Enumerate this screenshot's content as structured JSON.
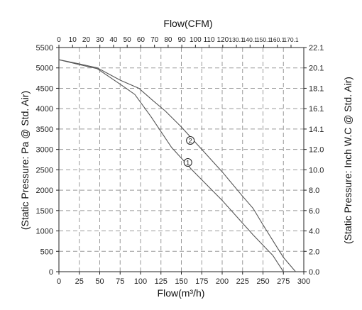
{
  "chart_data": {
    "type": "line",
    "title": "",
    "top_axis": {
      "label": "Flow(CFM)",
      "tick_labels": [
        "0",
        "10",
        "20",
        "30",
        "40",
        "50",
        "60",
        "70",
        "80",
        "90",
        "100",
        "110",
        "120",
        "130.1",
        "140.1",
        "150.1",
        "160.1",
        "170.1"
      ]
    },
    "bottom_axis": {
      "label": "Flow(m³/h)",
      "ticks": [
        0,
        25,
        50,
        75,
        100,
        125,
        150,
        175,
        200,
        225,
        250,
        275,
        300
      ],
      "xlim": [
        0,
        300
      ]
    },
    "left_axis": {
      "label": "(Static Pressure: Pa @ Std. Air)",
      "ticks": [
        0,
        500,
        1000,
        1500,
        2000,
        2500,
        3000,
        3500,
        4000,
        4500,
        5000,
        5500
      ],
      "ylim": [
        0,
        5500
      ]
    },
    "right_axis": {
      "label": "(Static Pressure: Inch W.C @ Std. Air)",
      "tick_labels": [
        "0.0",
        "2.0",
        "4.0",
        "6.0",
        "8.0",
        "10.0",
        "12.0",
        "14.1",
        "16.1",
        "18.1",
        "20.1",
        "22.1"
      ]
    },
    "grid": true,
    "series": [
      {
        "name": "1",
        "values": [
          [
            0,
            5200
          ],
          [
            25,
            5080
          ],
          [
            47,
            4980
          ],
          [
            75,
            4600
          ],
          [
            93,
            4350
          ],
          [
            113,
            3800
          ],
          [
            138,
            3050
          ],
          [
            163,
            2500
          ],
          [
            200,
            1750
          ],
          [
            238,
            900
          ],
          [
            262,
            400
          ],
          [
            275,
            0
          ]
        ]
      },
      {
        "name": "2",
        "values": [
          [
            0,
            5200
          ],
          [
            25,
            5100
          ],
          [
            47,
            5000
          ],
          [
            75,
            4700
          ],
          [
            98,
            4500
          ],
          [
            115,
            4200
          ],
          [
            130,
            3950
          ],
          [
            150,
            3550
          ],
          [
            175,
            3000
          ],
          [
            200,
            2450
          ],
          [
            225,
            1850
          ],
          [
            238,
            1550
          ],
          [
            250,
            1150
          ],
          [
            275,
            350
          ],
          [
            290,
            0
          ]
        ]
      }
    ],
    "series_label_positions": [
      [
        158,
        2680
      ],
      [
        161,
        3220
      ]
    ],
    "colors": {
      "line": "#555555",
      "grid": "#999999",
      "axis": "#222222"
    }
  }
}
